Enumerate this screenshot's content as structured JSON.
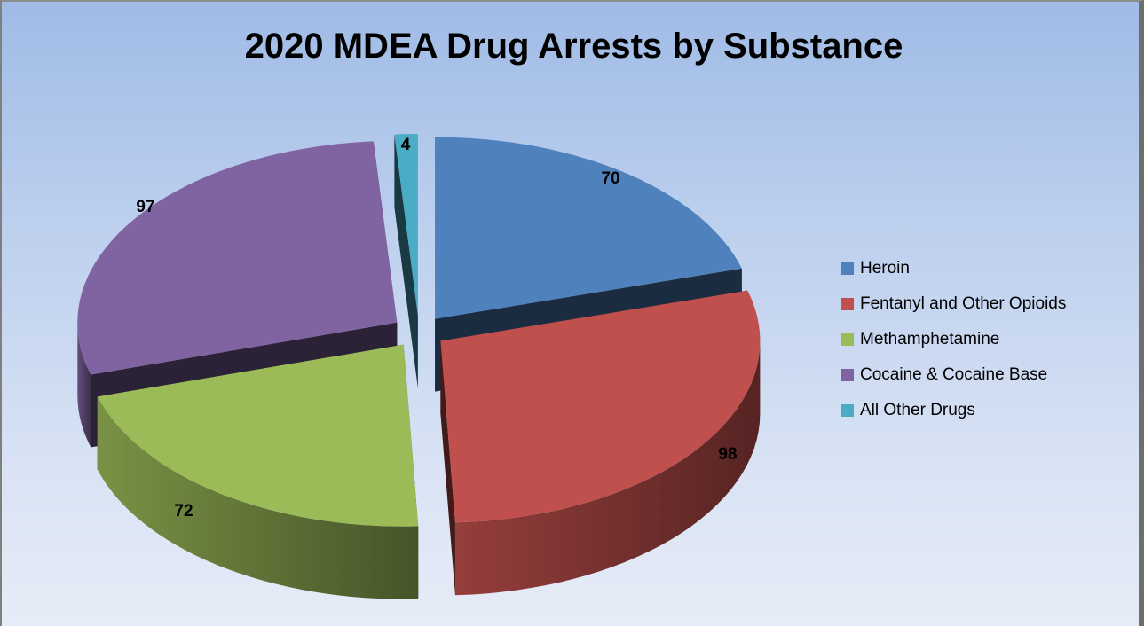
{
  "chart_data": {
    "type": "pie",
    "title": "2020 MDEA Drug Arrests by Substance",
    "categories": [
      "Heroin",
      "Fentanyl and Other Opioids",
      "Methamphetamine",
      "Cocaine & Cocaine Base",
      "All Other Drugs"
    ],
    "values": [
      70,
      98,
      72,
      97,
      4
    ],
    "colors": [
      "#4f81bd",
      "#c0504d",
      "#9bbb59",
      "#8064a2",
      "#4bacc6"
    ],
    "legend_position": "right",
    "style": "3d-exploded"
  }
}
